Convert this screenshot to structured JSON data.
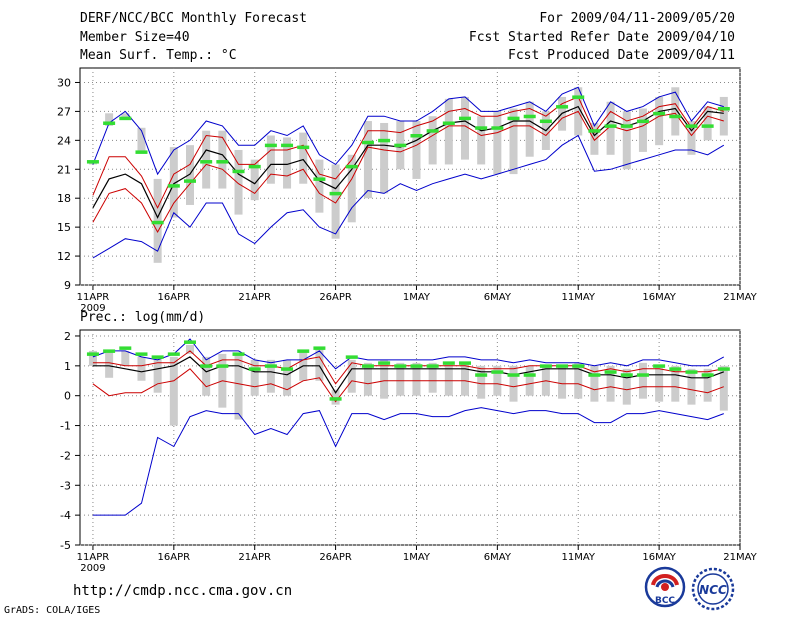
{
  "header": {
    "title_left": "DERF/NCC/BCC Monthly Forecast",
    "member_size": "Member Size=40",
    "variable_top": "Mean Surf. Temp.: °C",
    "period": "For 2009/04/11-2009/05/20",
    "start_refer": "Fcst Started Refer Date 2009/04/10",
    "produced": "Fcst Produced Date 2009/04/11"
  },
  "footer": {
    "url": "http://cmdp.ncc.cma.gov.cn",
    "grads": "GrADS: COLA/IGES",
    "logo_bcc": "BCC",
    "logo_ncc": "NCC"
  },
  "colors": {
    "envelope": "#0000cc",
    "spread": "#cc0000",
    "mean": "#000000",
    "marker": "#33dd33",
    "box": "#cccccc",
    "grid": "#888888"
  },
  "chart_data": [
    {
      "type": "ensemble",
      "title": "Mean Surf. Temp.: °C",
      "xlabels": [
        "11APR",
        "16APR",
        "21APR",
        "26APR",
        "1MAY",
        "6MAY",
        "11MAY",
        "16MAY",
        "21MAY"
      ],
      "xyear": "2009",
      "ylim": [
        9,
        31.5
      ],
      "yticks": [
        "9",
        "12",
        "15",
        "18",
        "21",
        "24",
        "27",
        "30"
      ],
      "x": [
        1,
        2,
        3,
        4,
        5,
        6,
        7,
        8,
        9,
        10,
        11,
        12,
        13,
        14,
        15,
        16,
        17,
        18,
        19,
        20,
        21,
        22,
        23,
        24,
        25,
        26,
        27,
        28,
        29,
        30,
        31,
        32,
        33,
        34,
        35,
        36,
        37,
        38,
        39,
        40
      ],
      "max": [
        21.5,
        25.8,
        27.0,
        25.0,
        20.5,
        23.0,
        24.0,
        26.0,
        25.5,
        23.5,
        23.5,
        25.0,
        24.5,
        25.5,
        22.5,
        21.5,
        23.5,
        26.5,
        26.5,
        26.0,
        26.0,
        27.0,
        28.3,
        28.5,
        27.0,
        27.0,
        27.5,
        28.0,
        27.0,
        28.8,
        29.5,
        25.5,
        28.0,
        27.0,
        27.5,
        28.5,
        29.0,
        26.0,
        28.0,
        27.5
      ],
      "upper": [
        18.3,
        22.3,
        22.3,
        20.3,
        17.0,
        20.5,
        21.5,
        24.5,
        24.3,
        21.5,
        21.5,
        23.0,
        23.0,
        23.5,
        20.5,
        20.0,
        22.0,
        25.0,
        25.0,
        24.8,
        25.5,
        26.0,
        27.0,
        27.3,
        26.5,
        26.5,
        27.0,
        27.3,
        26.5,
        27.8,
        28.5,
        24.8,
        27.0,
        26.0,
        26.5,
        27.5,
        27.8,
        25.3,
        27.5,
        27.0
      ],
      "mean": [
        17.0,
        20.0,
        20.5,
        19.5,
        16.0,
        19.5,
        20.5,
        23.0,
        22.5,
        20.5,
        19.5,
        21.5,
        21.5,
        22.0,
        19.8,
        19.0,
        21.0,
        23.5,
        23.5,
        23.3,
        24.0,
        25.0,
        25.8,
        26.0,
        25.0,
        25.3,
        26.0,
        26.0,
        25.0,
        26.8,
        27.5,
        24.5,
        26.0,
        25.5,
        26.0,
        27.0,
        27.3,
        25.0,
        27.0,
        26.8
      ],
      "lower": [
        15.5,
        18.5,
        19.0,
        17.5,
        14.5,
        17.5,
        19.5,
        21.5,
        21.0,
        19.5,
        18.5,
        20.5,
        20.3,
        21.0,
        18.5,
        17.5,
        20.0,
        23.3,
        23.0,
        22.8,
        23.5,
        24.5,
        25.5,
        25.5,
        24.5,
        24.8,
        25.5,
        25.5,
        24.5,
        26.3,
        27.0,
        24.0,
        25.5,
        25.0,
        25.5,
        26.5,
        26.8,
        24.5,
        26.5,
        26.0
      ],
      "min": [
        11.8,
        12.8,
        13.8,
        13.5,
        12.5,
        16.5,
        15.0,
        17.5,
        17.5,
        14.3,
        13.3,
        15.0,
        16.5,
        16.8,
        15.0,
        14.3,
        17.0,
        18.8,
        18.5,
        19.5,
        18.8,
        19.5,
        20.0,
        20.5,
        20.0,
        20.5,
        21.0,
        21.5,
        22.0,
        23.5,
        24.5,
        20.8,
        21.0,
        21.5,
        22.0,
        22.5,
        23.0,
        23.0,
        22.5,
        23.5
      ],
      "box_high": [
        21.8,
        26.8,
        26.8,
        25.3,
        20.0,
        23.3,
        23.5,
        25.0,
        25.0,
        23.0,
        22.0,
        24.5,
        24.3,
        24.8,
        22.0,
        21.5,
        22.5,
        26.0,
        25.8,
        26.0,
        26.0,
        26.5,
        28.3,
        28.5,
        26.5,
        27.0,
        27.3,
        28.0,
        27.0,
        28.5,
        29.5,
        25.8,
        28.0,
        27.0,
        27.3,
        28.5,
        29.5,
        26.0,
        27.5,
        28.5
      ],
      "box_low": [
        21.5,
        25.5,
        26.3,
        22.8,
        11.3,
        16.0,
        17.3,
        19.0,
        19.0,
        16.3,
        17.8,
        19.5,
        19.0,
        19.5,
        16.5,
        13.8,
        15.5,
        18.0,
        18.5,
        21.0,
        20.0,
        21.5,
        21.5,
        22.0,
        21.5,
        20.5,
        20.5,
        22.3,
        23.0,
        25.0,
        24.5,
        22.5,
        22.5,
        21.0,
        22.8,
        23.5,
        24.5,
        22.5,
        24.0,
        24.5
      ],
      "marker": [
        21.8,
        25.8,
        26.3,
        22.8,
        15.5,
        19.3,
        19.8,
        21.8,
        21.8,
        20.8,
        21.3,
        23.5,
        23.5,
        23.3,
        20.0,
        18.5,
        21.3,
        23.8,
        24.0,
        23.5,
        24.5,
        25.0,
        25.8,
        26.3,
        25.3,
        25.3,
        26.3,
        26.5,
        26.0,
        27.5,
        28.5,
        25.0,
        25.5,
        25.5,
        26.0,
        26.8,
        26.5,
        25.5,
        25.5,
        27.3
      ]
    },
    {
      "type": "ensemble",
      "title": "Prec.: log(mm/d)",
      "xlabels": [
        "11APR",
        "16APR",
        "21APR",
        "26APR",
        "1MAY",
        "6MAY",
        "11MAY",
        "16MAY",
        "21MAY"
      ],
      "xyear": "2009",
      "ylim": [
        -5,
        2.2
      ],
      "yticks": [
        "-5",
        "-4",
        "-3",
        "-2",
        "-1",
        "0",
        "1",
        "2"
      ],
      "x": [
        1,
        2,
        3,
        4,
        5,
        6,
        7,
        8,
        9,
        10,
        11,
        12,
        13,
        14,
        15,
        16,
        17,
        18,
        19,
        20,
        21,
        22,
        23,
        24,
        25,
        26,
        27,
        28,
        29,
        30,
        31,
        32,
        33,
        34,
        35,
        36,
        37,
        38,
        39,
        40
      ],
      "max": [
        1.3,
        1.5,
        1.5,
        1.3,
        1.2,
        1.4,
        1.9,
        1.2,
        1.5,
        1.5,
        1.2,
        1.1,
        1.2,
        1.2,
        1.5,
        0.9,
        1.3,
        1.2,
        1.2,
        1.2,
        1.2,
        1.2,
        1.3,
        1.3,
        1.2,
        1.2,
        1.1,
        1.2,
        1.1,
        1.1,
        1.1,
        1.0,
        1.1,
        1.0,
        1.2,
        1.2,
        1.1,
        1.0,
        1.0,
        1.3
      ],
      "upper": [
        1.1,
        1.1,
        1.0,
        1.0,
        1.1,
        1.1,
        1.5,
        1.0,
        1.2,
        1.2,
        1.0,
        1.0,
        0.9,
        1.2,
        1.3,
        0.4,
        1.1,
        1.0,
        1.0,
        1.0,
        1.0,
        1.0,
        1.0,
        1.0,
        0.9,
        0.9,
        0.9,
        1.0,
        1.0,
        1.0,
        1.0,
        0.8,
        0.9,
        0.8,
        0.9,
        0.9,
        0.8,
        0.8,
        0.8,
        0.9
      ],
      "mean": [
        1.0,
        1.0,
        0.9,
        0.8,
        0.9,
        1.0,
        1.3,
        0.8,
        1.0,
        1.0,
        0.8,
        0.8,
        0.7,
        1.0,
        1.0,
        0.1,
        0.9,
        0.9,
        0.9,
        0.9,
        0.9,
        0.9,
        0.9,
        0.9,
        0.8,
        0.8,
        0.7,
        0.8,
        0.9,
        0.9,
        0.9,
        0.7,
        0.7,
        0.6,
        0.7,
        0.7,
        0.7,
        0.6,
        0.6,
        0.8
      ],
      "lower": [
        0.4,
        0.0,
        0.1,
        0.1,
        0.4,
        0.5,
        0.9,
        0.3,
        0.5,
        0.4,
        0.3,
        0.4,
        0.2,
        0.5,
        0.6,
        -0.2,
        0.5,
        0.4,
        0.5,
        0.5,
        0.5,
        0.5,
        0.5,
        0.5,
        0.4,
        0.4,
        0.3,
        0.4,
        0.5,
        0.4,
        0.4,
        0.2,
        0.3,
        0.2,
        0.3,
        0.3,
        0.3,
        0.2,
        0.1,
        0.3
      ],
      "min": [
        -4.0,
        -4.0,
        -4.0,
        -3.6,
        -1.4,
        -1.7,
        -0.7,
        -0.5,
        -0.6,
        -0.6,
        -1.3,
        -1.1,
        -1.3,
        -0.6,
        -0.5,
        -1.7,
        -0.6,
        -0.6,
        -0.8,
        -0.6,
        -0.6,
        -0.7,
        -0.7,
        -0.5,
        -0.4,
        -0.5,
        -0.6,
        -0.5,
        -0.5,
        -0.6,
        -0.6,
        -0.9,
        -0.9,
        -0.6,
        -0.6,
        -0.5,
        -0.6,
        -0.7,
        -0.8,
        -0.6
      ],
      "box_high": [
        1.5,
        1.5,
        1.5,
        1.3,
        1.3,
        1.3,
        1.7,
        1.3,
        1.4,
        1.4,
        1.2,
        1.2,
        1.2,
        1.5,
        1.6,
        0.2,
        1.2,
        1.1,
        1.2,
        1.1,
        1.1,
        1.1,
        1.1,
        1.1,
        1.0,
        1.0,
        1.0,
        1.0,
        1.0,
        1.0,
        1.1,
        1.0,
        1.0,
        0.9,
        1.1,
        1.0,
        1.0,
        0.9,
        0.9,
        1.0
      ],
      "box_low": [
        1.0,
        0.6,
        1.0,
        0.5,
        0.1,
        -1.0,
        1.4,
        0.0,
        -0.4,
        -0.8,
        0.0,
        0.1,
        0.0,
        0.5,
        0.5,
        -0.3,
        0.1,
        0.0,
        -0.1,
        0.0,
        0.0,
        0.1,
        0.0,
        0.0,
        -0.1,
        0.0,
        -0.2,
        0.0,
        0.0,
        -0.1,
        -0.1,
        -0.2,
        -0.2,
        -0.3,
        -0.1,
        -0.2,
        -0.2,
        -0.3,
        -0.2,
        -0.5
      ],
      "marker": [
        1.4,
        1.5,
        1.6,
        1.4,
        1.3,
        1.4,
        1.8,
        1.0,
        1.0,
        1.4,
        0.9,
        1.0,
        0.9,
        1.5,
        1.6,
        -0.1,
        1.3,
        1.0,
        1.1,
        1.0,
        1.0,
        1.0,
        1.1,
        1.1,
        0.7,
        0.8,
        0.7,
        0.7,
        1.0,
        1.0,
        1.0,
        0.7,
        0.8,
        0.7,
        0.7,
        1.0,
        0.9,
        0.8,
        0.7,
        0.9
      ]
    }
  ]
}
